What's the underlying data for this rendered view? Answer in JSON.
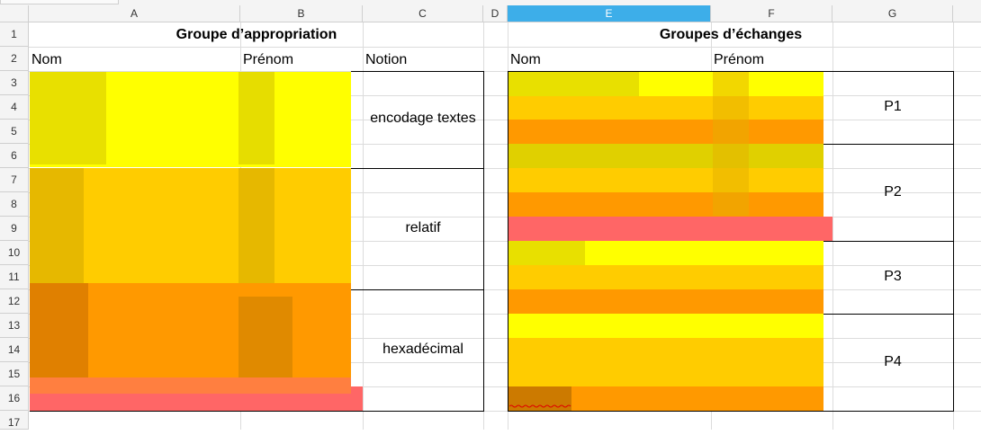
{
  "columns": [
    "A",
    "B",
    "C",
    "D",
    "E",
    "F",
    "G"
  ],
  "selected_column": "E",
  "rows": [
    "1",
    "2",
    "3",
    "4",
    "5",
    "6",
    "7",
    "8",
    "9",
    "10",
    "11",
    "12",
    "13",
    "14",
    "15",
    "16",
    "17"
  ],
  "left_table": {
    "title": "Groupe d’appropriation",
    "headers": [
      "Nom",
      "Prénom",
      "Notion"
    ],
    "notions": [
      "encodage textes",
      "relatif",
      "hexadécimal"
    ]
  },
  "right_table": {
    "title": "Groupes d’échanges",
    "headers": [
      "Nom",
      "Prénom"
    ],
    "groups": [
      "P1",
      "P2",
      "P3",
      "P4"
    ]
  },
  "colors": {
    "yellow": "#ffff00",
    "gold": "#ffcc00",
    "orange": "#ff9900",
    "salmon": "#ff6666",
    "selected_header": "#3daee9"
  }
}
